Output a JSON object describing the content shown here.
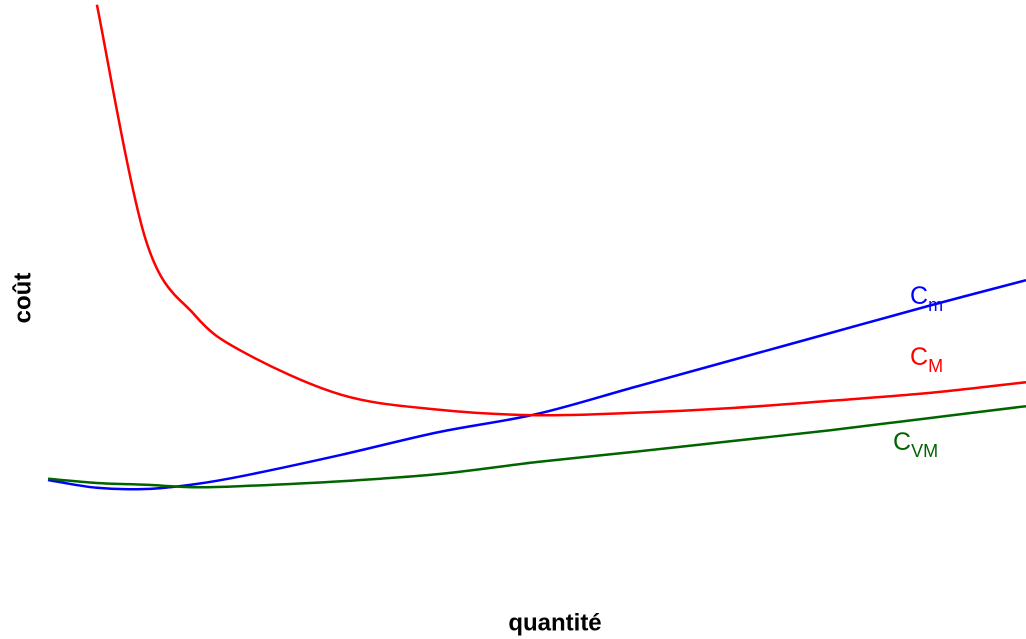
{
  "chart_data": {
    "type": "line",
    "x_label": "quantité",
    "y_label": "coût",
    "x": [
      0,
      0.5,
      1,
      1.5,
      2,
      3,
      4,
      5,
      6,
      7,
      8,
      9,
      10
    ],
    "xlim": [
      0,
      10
    ],
    "ylim": [
      0,
      10
    ],
    "series": [
      {
        "label": "C",
        "label_sub": "m",
        "color": "#0000ff",
        "values": [
          2.0,
          1.87,
          1.85,
          1.93,
          2.07,
          2.42,
          2.8,
          3.1,
          3.55,
          4.0,
          4.45,
          4.9,
          5.33
        ]
      },
      {
        "label": "C",
        "label_sub": "M",
        "color": "#ff0000",
        "values": [
          null,
          9.92,
          6.0,
          4.75,
          4.13,
          3.42,
          3.17,
          3.08,
          3.12,
          3.2,
          3.32,
          3.45,
          3.63
        ]
      },
      {
        "label": "C",
        "label_sub": "VM",
        "color": "#006400",
        "values": [
          2.02,
          1.95,
          1.92,
          1.88,
          1.9,
          1.98,
          2.1,
          2.3,
          2.47,
          2.65,
          2.83,
          3.03,
          3.23
        ]
      }
    ]
  }
}
